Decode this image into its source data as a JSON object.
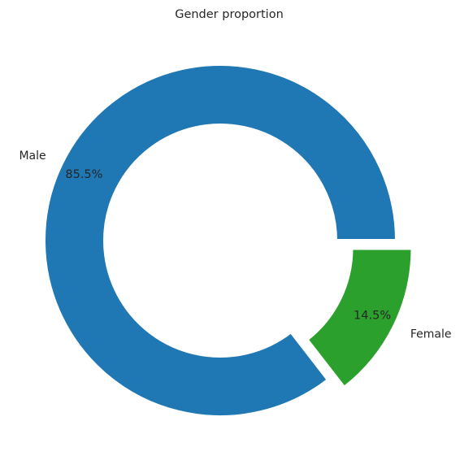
{
  "chart_data": {
    "type": "pie",
    "title": "Gender proportion",
    "categories": [
      "Male",
      "Female"
    ],
    "values": [
      85.5,
      14.5
    ],
    "labels": [
      "85.5%",
      "14.5%"
    ],
    "colors": [
      "#1f77b4",
      "#2ca02c"
    ],
    "donut": true,
    "explode": [
      0,
      0.1
    ],
    "start_angle": 0,
    "direction": "counterclockwise",
    "legend": "none"
  }
}
